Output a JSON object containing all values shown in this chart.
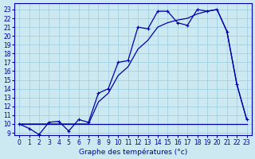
{
  "xlabel": "Graphe des températures (°c)",
  "bg_color": "#cce8f0",
  "line_color": "#0000aa",
  "grid_color": "#99cce0",
  "x_ticks": [
    0,
    1,
    2,
    3,
    4,
    5,
    6,
    7,
    8,
    9,
    10,
    11,
    12,
    13,
    14,
    15,
    16,
    17,
    18,
    19,
    20,
    21,
    22,
    23
  ],
  "y_ticks": [
    9,
    10,
    11,
    12,
    13,
    14,
    15,
    16,
    17,
    18,
    19,
    20,
    21,
    22,
    23
  ],
  "ylim": [
    8.7,
    23.7
  ],
  "xlim": [
    -0.5,
    23.5
  ],
  "line1_x": [
    0,
    1,
    2,
    3,
    4,
    5,
    6,
    7,
    8,
    9,
    10,
    11,
    12,
    13,
    14,
    15,
    16,
    17,
    18,
    19,
    20,
    21,
    22,
    23
  ],
  "line1_y": [
    10,
    9.5,
    8.8,
    10.2,
    10.3,
    9.2,
    10.5,
    10.2,
    13.5,
    14.0,
    17.0,
    17.2,
    21.0,
    20.8,
    22.8,
    22.8,
    21.5,
    21.2,
    23.0,
    22.8,
    23.0,
    20.5,
    14.5,
    10.5
  ],
  "line2_x": [
    0,
    1,
    2,
    3,
    4,
    5,
    6,
    7,
    8,
    9,
    10,
    11,
    12,
    13,
    14,
    15,
    16,
    17,
    18,
    19,
    20,
    21,
    22,
    23
  ],
  "line2_y": [
    10,
    10,
    10,
    10,
    10,
    10,
    10,
    10,
    10,
    10,
    10,
    10,
    10,
    10,
    10,
    10,
    10,
    10,
    10,
    10,
    10,
    10,
    10,
    10
  ],
  "line3_x": [
    0,
    1,
    2,
    3,
    4,
    5,
    6,
    7,
    8,
    9,
    10,
    11,
    12,
    13,
    14,
    15,
    16,
    17,
    18,
    19,
    20,
    21,
    22,
    23
  ],
  "line3_y": [
    10,
    10,
    10,
    10,
    10,
    10,
    10,
    10,
    12.5,
    13.5,
    15.5,
    16.5,
    18.5,
    19.5,
    21.0,
    21.5,
    21.8,
    22.0,
    22.5,
    22.8,
    23.0,
    20.5,
    14.5,
    10.5
  ],
  "tick_fontsize": 5.5,
  "xlabel_fontsize": 6.5
}
